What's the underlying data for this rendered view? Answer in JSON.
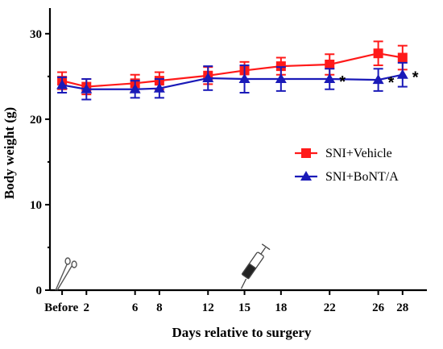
{
  "chart_data": {
    "type": "line",
    "xlabel": "Days relative to surgery",
    "ylabel": "Body weight (g)",
    "ylim": [
      0,
      33
    ],
    "yticks": [
      0,
      10,
      20,
      30
    ],
    "x_categories": [
      "Before",
      "2",
      "6",
      "8",
      "12",
      "15",
      "18",
      "22",
      "26",
      "28"
    ],
    "x_positions": [
      0,
      2,
      6,
      8,
      12,
      15,
      18,
      22,
      26,
      28
    ],
    "xlim": [
      -1,
      30
    ],
    "legend_position": "right",
    "series": [
      {
        "name": "SNI+Vehicle",
        "color": "#ff1a1a",
        "marker": "square",
        "values": [
          24.5,
          23.8,
          24.2,
          24.5,
          25.1,
          25.7,
          26.2,
          26.4,
          27.7,
          27.2
        ],
        "errors": [
          1.0,
          0.9,
          1.0,
          1.0,
          1.0,
          1.0,
          1.0,
          1.2,
          1.4,
          1.4
        ]
      },
      {
        "name": "SNI+BoNT/A",
        "color": "#1a1ab8",
        "marker": "triangle",
        "values": [
          24.0,
          23.5,
          23.5,
          23.6,
          24.8,
          24.7,
          24.7,
          24.7,
          24.6,
          25.2
        ],
        "errors": [
          0.9,
          1.2,
          1.0,
          1.1,
          1.4,
          1.6,
          1.4,
          1.2,
          1.3,
          1.4
        ]
      }
    ],
    "annotations": [
      {
        "text": "*",
        "series": 1,
        "x": 22
      },
      {
        "text": "*",
        "series": 1,
        "x": 26
      },
      {
        "text": "*",
        "series": 1,
        "x": 28
      }
    ],
    "icons": [
      {
        "name": "scissors-icon",
        "x": 0
      },
      {
        "name": "syringe-icon",
        "x": 15
      }
    ]
  }
}
